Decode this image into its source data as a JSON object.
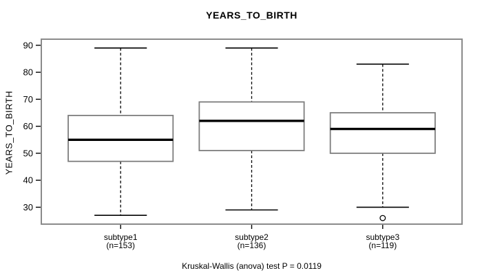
{
  "title": "YEARS_TO_BIRTH",
  "ylabel": "YEARS_TO_BIRTH",
  "caption": "Kruskal-Wallis (anova) test P = 0.0119",
  "chart_data": {
    "type": "boxplot",
    "title": "YEARS_TO_BIRTH",
    "ylabel": "YEARS_TO_BIRTH",
    "xlabel": "",
    "ylim": [
      24,
      92
    ],
    "yticks": [
      30,
      40,
      50,
      60,
      70,
      80,
      90
    ],
    "grid": false,
    "annotation": "Kruskal-Wallis (anova) test P = 0.0119",
    "groups": [
      {
        "label": "subtype1",
        "sublabel": "(n=153)",
        "n": 153,
        "whisker_low": 27,
        "q1": 47,
        "median": 55,
        "q3": 64,
        "whisker_high": 89,
        "outliers": []
      },
      {
        "label": "subtype2",
        "sublabel": "(n=136)",
        "n": 136,
        "whisker_low": 29,
        "q1": 51,
        "median": 62,
        "q3": 69,
        "whisker_high": 89,
        "outliers": []
      },
      {
        "label": "subtype3",
        "sublabel": "(n=119)",
        "n": 119,
        "whisker_low": 30,
        "q1": 50,
        "median": 59,
        "q3": 65,
        "whisker_high": 83,
        "outliers": [
          26
        ]
      }
    ],
    "colors": {
      "background": "#ffffff",
      "frame": "#8a8a8a",
      "box_border": "#7d7d7d",
      "box_fill": "#ffffff",
      "median": "#000000",
      "whisker": "#000000",
      "text": "#000000"
    }
  }
}
